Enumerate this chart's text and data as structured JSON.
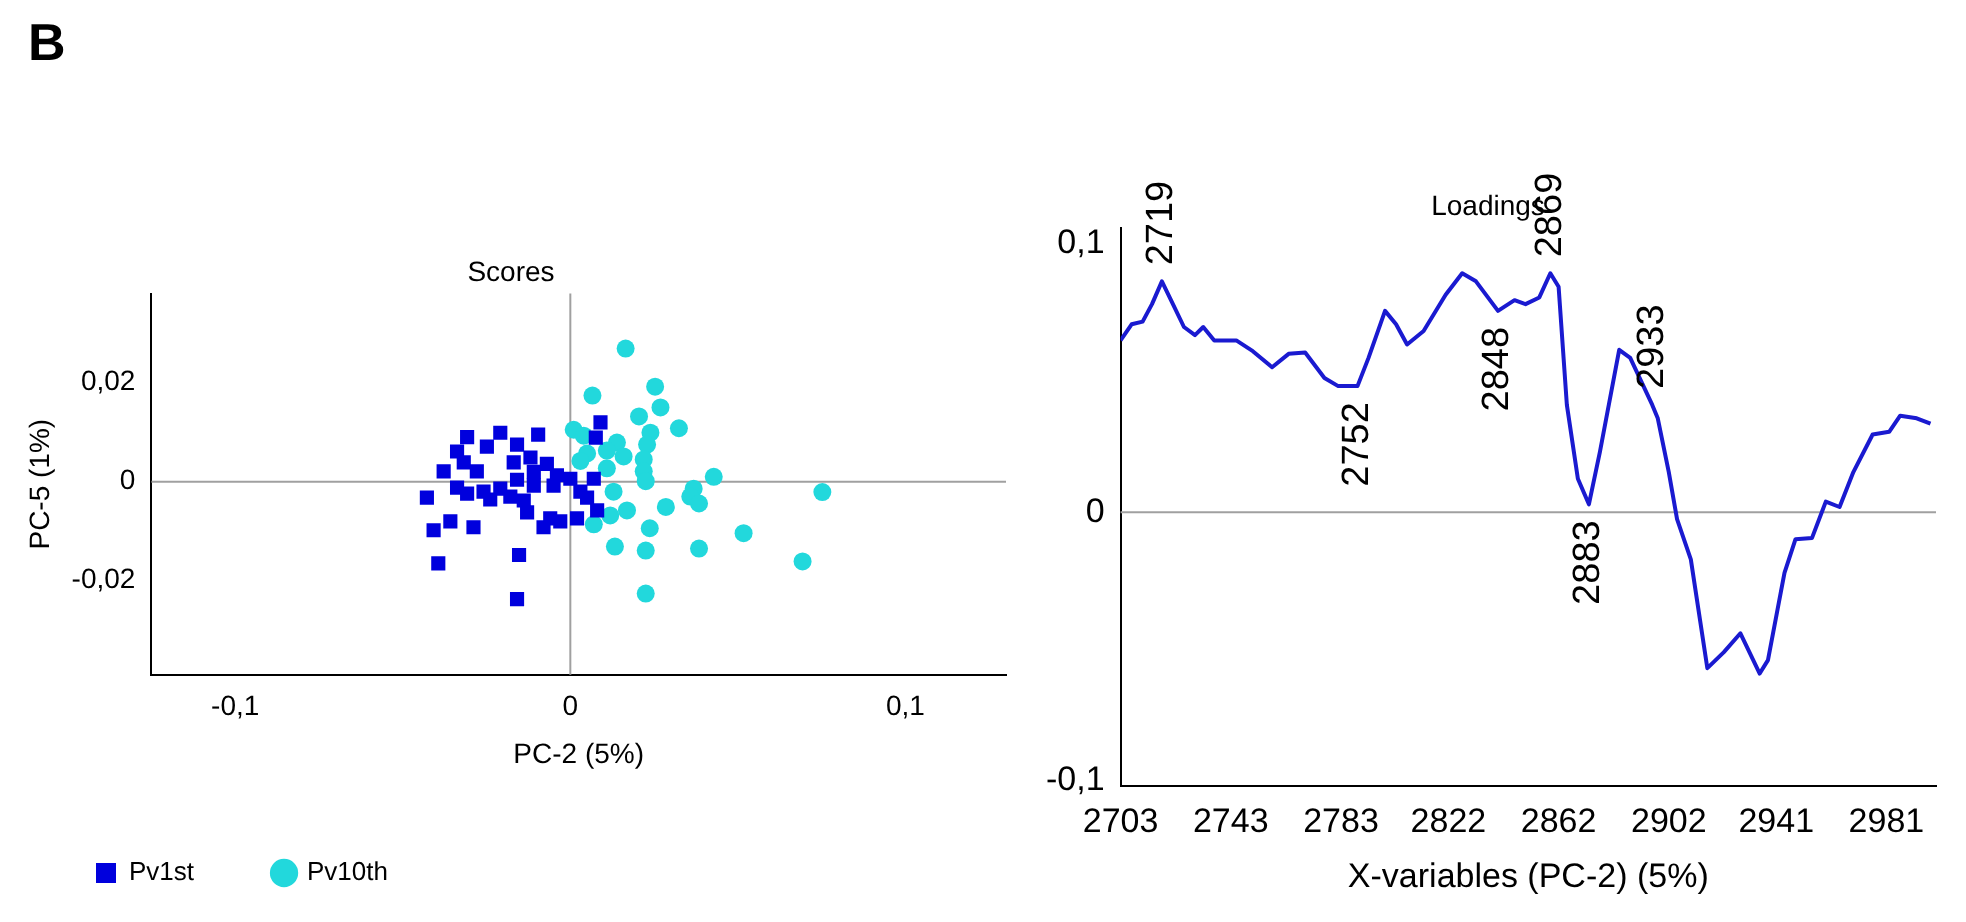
{
  "chart_data": [
    {
      "type": "scatter",
      "title": "Scores",
      "xlabel": "PC-2 (5%)",
      "ylabel": "PC-5 (1%)",
      "annotations": [
        "B"
      ],
      "xlim": [
        -0.125,
        0.13
      ],
      "xticks": [
        {
          "value": -0.1,
          "label": "-0,1"
        },
        0,
        {
          "value": 0.1,
          "label": "0,1"
        }
      ],
      "ylim": [
        -0.039,
        0.038
      ],
      "yticks": [
        {
          "value": -0.02,
          "label": "-0,02"
        },
        0,
        {
          "value": 0.02,
          "label": "0,02"
        }
      ],
      "grid": false,
      "legend": "bottom left",
      "ref_lines": [
        {
          "axis": "x",
          "value": 0,
          "color": "#a0a0a0"
        },
        {
          "axis": "y",
          "value": 0,
          "color": "#a0a0a0"
        }
      ],
      "series": [
        {
          "name": "Pv1st",
          "color": "#0000dd",
          "marker": "square",
          "x": [
            0.009,
            0.0076,
            -0.0308,
            -0.0209,
            -0.0096,
            -0.0159,
            -0.0249,
            -0.0338,
            -0.0318,
            -0.0279,
            -0.0169,
            -0.0119,
            -0.007,
            -0.004,
            -0.0109,
            -0.0378,
            -0.0338,
            -0.0308,
            -0.0259,
            -0.0209,
            -0.0179,
            -0.0139,
            -0.0239,
            -0.0428,
            -0.0358,
            -0.0408,
            -0.0289,
            -0.0394,
            -0.0153,
            -0.0159,
            -0.006,
            -0.008,
            -0.003,
            0.003,
            0.007,
            0.005,
            0.008,
            0.002,
            -0.0129,
            -0.005,
            0.0,
            -0.0109,
            -0.0159
          ],
          "values": [
            0.012,
            0.0089,
            0.009,
            0.0099,
            0.0095,
            0.0075,
            0.0071,
            0.0061,
            0.0039,
            0.0021,
            0.0039,
            0.0049,
            0.0036,
            0.0013,
            0.002,
            0.0021,
            -0.0012,
            -0.0024,
            -0.002,
            -0.0014,
            -0.003,
            -0.0038,
            -0.0036,
            -0.0032,
            -0.008,
            -0.0098,
            -0.0092,
            -0.0165,
            -0.0148,
            -0.0237,
            -0.0074,
            -0.0092,
            -0.008,
            -0.002,
            0.0006,
            -0.0032,
            -0.0058,
            -0.0074,
            -0.0062,
            -0.0008,
            0.0006,
            -0.0008,
            0.0004
          ]
        },
        {
          "name": "Pv10th",
          "color": "#22d8dc",
          "marker": "circle",
          "x": [
            0.0165,
            0.0066,
            0.0253,
            0.0269,
            0.0205,
            0.0324,
            0.0239,
            0.001,
            0.004,
            0.0139,
            0.0229,
            0.0159,
            0.0219,
            0.005,
            0.0109,
            0.003,
            0.0109,
            0.0219,
            0.0225,
            0.0428,
            0.0129,
            0.0368,
            0.0358,
            0.0384,
            0.0285,
            0.0169,
            0.0119,
            0.007,
            0.0237,
            0.0517,
            0.0133,
            0.0225,
            0.0384,
            0.0693,
            0.0225,
            0.0752
          ],
          "values": [
            0.0269,
            0.0174,
            0.0192,
            0.015,
            0.0132,
            0.0108,
            0.0099,
            0.0105,
            0.0093,
            0.0079,
            0.0075,
            0.0051,
            0.0045,
            0.0057,
            0.0063,
            0.0042,
            0.0027,
            0.0021,
            0.0001,
            0.001,
            -0.002,
            -0.0014,
            -0.003,
            -0.0044,
            -0.0051,
            -0.0058,
            -0.0068,
            -0.0086,
            -0.0094,
            -0.0104,
            -0.0131,
            -0.0139,
            -0.0135,
            -0.0161,
            -0.0226,
            -0.0021
          ]
        }
      ]
    },
    {
      "type": "line",
      "title": "Loadings",
      "xlabel": "X-variables (PC-2) (5%)",
      "xlim": [
        2703,
        2999
      ],
      "xticks": [
        2703,
        2743,
        2783,
        2822,
        2862,
        2902,
        2941,
        2981
      ],
      "ylim": [
        -0.102,
        0.106
      ],
      "yticks": [
        {
          "value": -0.1,
          "label": "-0,1"
        },
        0,
        {
          "value": 0.1,
          "label": "0,1"
        }
      ],
      "grid": false,
      "legend": false,
      "marker": "none",
      "line_style": "solid",
      "ref_lines": [
        {
          "axis": "y",
          "value": 0,
          "color": "#a0a0a0"
        }
      ],
      "annotations": [
        {
          "text": "2719",
          "x": 2718,
          "y": 0.086
        },
        {
          "text": "2752",
          "x": 2789,
          "y": 0.047
        },
        {
          "text": "2848",
          "x": 2840,
          "y": 0.075
        },
        {
          "text": "2869",
          "x": 2859,
          "y": 0.089
        },
        {
          "text": "2933",
          "x": 2896,
          "y": 0.04
        },
        {
          "text": "2883",
          "x": 2873,
          "y": 0.003
        }
      ],
      "series": [
        {
          "color": "#1a1ad0",
          "x": [
            2703,
            2707,
            2711,
            2714.4,
            2718,
            2722,
            2726,
            2730,
            2733,
            2737,
            2745,
            2751,
            2758,
            2764,
            2770,
            2777,
            2782,
            2789,
            2793,
            2799,
            2803,
            2807,
            2813,
            2821,
            2827,
            2832,
            2840,
            2846,
            2850,
            2855,
            2859,
            2862,
            2865,
            2869,
            2873,
            2877,
            2884,
            2888,
            2896,
            2898,
            2902,
            2905,
            2910,
            2916,
            2922,
            2928,
            2935,
            2938,
            2944,
            2948,
            2954,
            2959,
            2964,
            2969,
            2976,
            2982,
            2986,
            2992,
            2997
          ],
          "values": [
            0.064,
            0.07,
            0.071,
            0.0775,
            0.086,
            0.0775,
            0.069,
            0.066,
            0.069,
            0.064,
            0.064,
            0.06,
            0.054,
            0.059,
            0.0595,
            0.05,
            0.047,
            0.047,
            0.0575,
            0.075,
            0.07,
            0.0625,
            0.0675,
            0.081,
            0.089,
            0.086,
            0.075,
            0.079,
            0.0775,
            0.08,
            0.089,
            0.084,
            0.04,
            0.0125,
            0.003,
            0.0225,
            0.0605,
            0.0575,
            0.04,
            0.035,
            0.015,
            -0.0025,
            -0.0175,
            -0.058,
            -0.052,
            -0.045,
            -0.06,
            -0.055,
            -0.0225,
            -0.01,
            -0.0095,
            0.004,
            0.002,
            0.015,
            0.029,
            0.03,
            0.036,
            0.035,
            0.033
          ]
        }
      ]
    }
  ]
}
